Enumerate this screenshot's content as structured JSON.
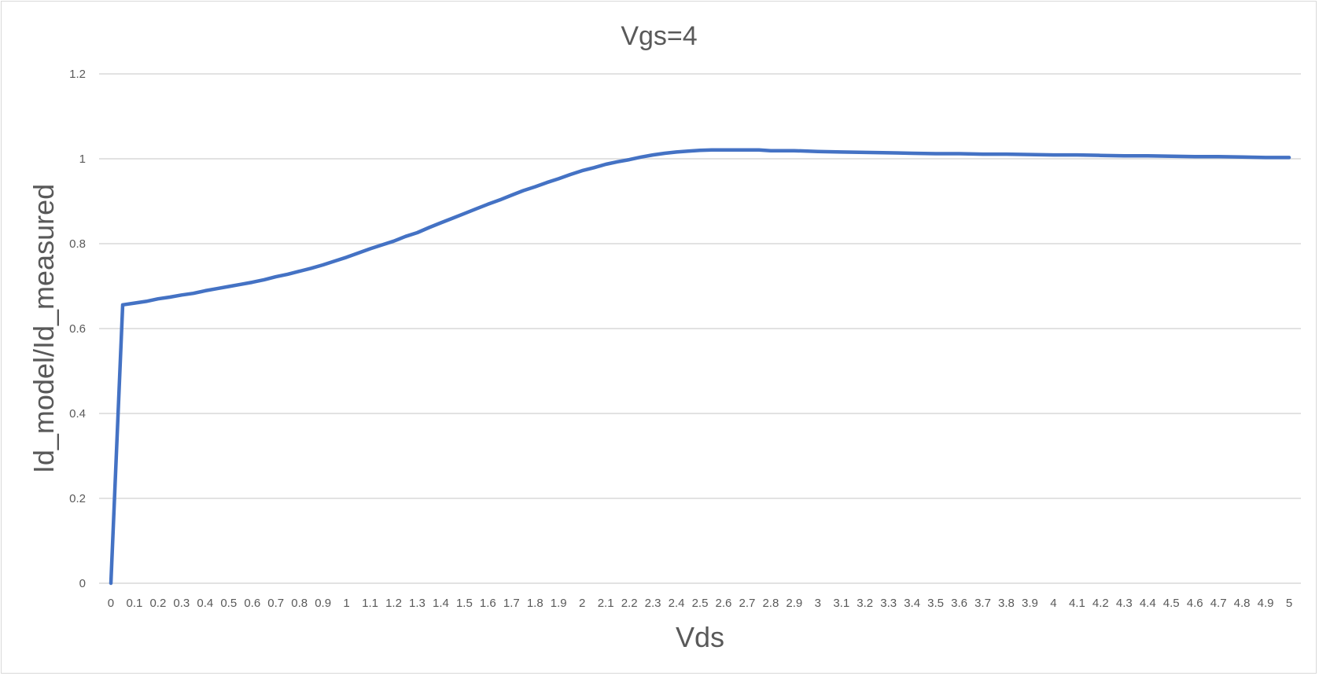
{
  "chart_data": {
    "type": "line",
    "title": "Vgs=4",
    "xlabel": "Vds",
    "ylabel": "Id_model/Id_measured",
    "ylim": [
      0,
      1.2
    ],
    "yticks": [
      "0",
      "0.2",
      "0.4",
      "0.6",
      "0.8",
      "1",
      "1.2"
    ],
    "x": [
      "0",
      "0.1",
      "0.2",
      "0.3",
      "0.4",
      "0.5",
      "0.6",
      "0.7",
      "0.8",
      "0.9",
      "1",
      "1.1",
      "1.2",
      "1.3",
      "1.4",
      "1.5",
      "1.6",
      "1.7",
      "1.8",
      "1.9",
      "2",
      "2.1",
      "2.2",
      "2.3",
      "2.4",
      "2.5",
      "2.6",
      "2.7",
      "2.8",
      "2.9",
      "3",
      "3.1",
      "3.2",
      "3.3",
      "3.4",
      "3.5",
      "3.6",
      "3.7",
      "3.8",
      "3.9",
      "4",
      "4.1",
      "4.2",
      "4.3",
      "4.4",
      "4.5",
      "4.6",
      "4.7",
      "4.8",
      "4.9",
      "5"
    ],
    "points": [
      [
        0,
        0
      ],
      [
        0.05,
        0.656
      ],
      [
        0.1,
        0.66
      ],
      [
        0.15,
        0.664
      ],
      [
        0.2,
        0.67
      ],
      [
        0.25,
        0.674
      ],
      [
        0.3,
        0.679
      ],
      [
        0.35,
        0.683
      ],
      [
        0.4,
        0.689
      ],
      [
        0.45,
        0.694
      ],
      [
        0.5,
        0.699
      ],
      [
        0.55,
        0.704
      ],
      [
        0.6,
        0.709
      ],
      [
        0.65,
        0.715
      ],
      [
        0.7,
        0.722
      ],
      [
        0.75,
        0.728
      ],
      [
        0.8,
        0.735
      ],
      [
        0.85,
        0.742
      ],
      [
        0.9,
        0.75
      ],
      [
        0.95,
        0.759
      ],
      [
        1.0,
        0.768
      ],
      [
        1.05,
        0.778
      ],
      [
        1.1,
        0.788
      ],
      [
        1.15,
        0.797
      ],
      [
        1.2,
        0.806
      ],
      [
        1.25,
        0.817
      ],
      [
        1.3,
        0.826
      ],
      [
        1.35,
        0.838
      ],
      [
        1.4,
        0.849
      ],
      [
        1.45,
        0.86
      ],
      [
        1.5,
        0.871
      ],
      [
        1.55,
        0.882
      ],
      [
        1.6,
        0.893
      ],
      [
        1.65,
        0.903
      ],
      [
        1.7,
        0.914
      ],
      [
        1.75,
        0.925
      ],
      [
        1.8,
        0.934
      ],
      [
        1.85,
        0.944
      ],
      [
        1.9,
        0.953
      ],
      [
        1.95,
        0.963
      ],
      [
        2.0,
        0.972
      ],
      [
        2.05,
        0.979
      ],
      [
        2.1,
        0.987
      ],
      [
        2.15,
        0.993
      ],
      [
        2.2,
        0.998
      ],
      [
        2.25,
        1.004
      ],
      [
        2.3,
        1.009
      ],
      [
        2.35,
        1.013
      ],
      [
        2.4,
        1.016
      ],
      [
        2.45,
        1.018
      ],
      [
        2.5,
        1.02
      ],
      [
        2.55,
        1.021
      ],
      [
        2.6,
        1.021
      ],
      [
        2.7,
        1.021
      ],
      [
        2.75,
        1.021
      ],
      [
        2.8,
        1.019
      ],
      [
        2.9,
        1.019
      ],
      [
        3.0,
        1.017
      ],
      [
        3.1,
        1.016
      ],
      [
        3.2,
        1.015
      ],
      [
        3.3,
        1.014
      ],
      [
        3.4,
        1.013
      ],
      [
        3.5,
        1.012
      ],
      [
        3.6,
        1.012
      ],
      [
        3.7,
        1.011
      ],
      [
        3.8,
        1.011
      ],
      [
        3.9,
        1.01
      ],
      [
        4.0,
        1.009
      ],
      [
        4.1,
        1.009
      ],
      [
        4.2,
        1.008
      ],
      [
        4.3,
        1.007
      ],
      [
        4.4,
        1.007
      ],
      [
        4.5,
        1.006
      ],
      [
        4.6,
        1.005
      ],
      [
        4.7,
        1.005
      ],
      [
        4.8,
        1.004
      ],
      [
        4.9,
        1.003
      ],
      [
        5.0,
        1.003
      ]
    ],
    "series_color": "#4472c4",
    "grid": true,
    "legend": "none"
  }
}
